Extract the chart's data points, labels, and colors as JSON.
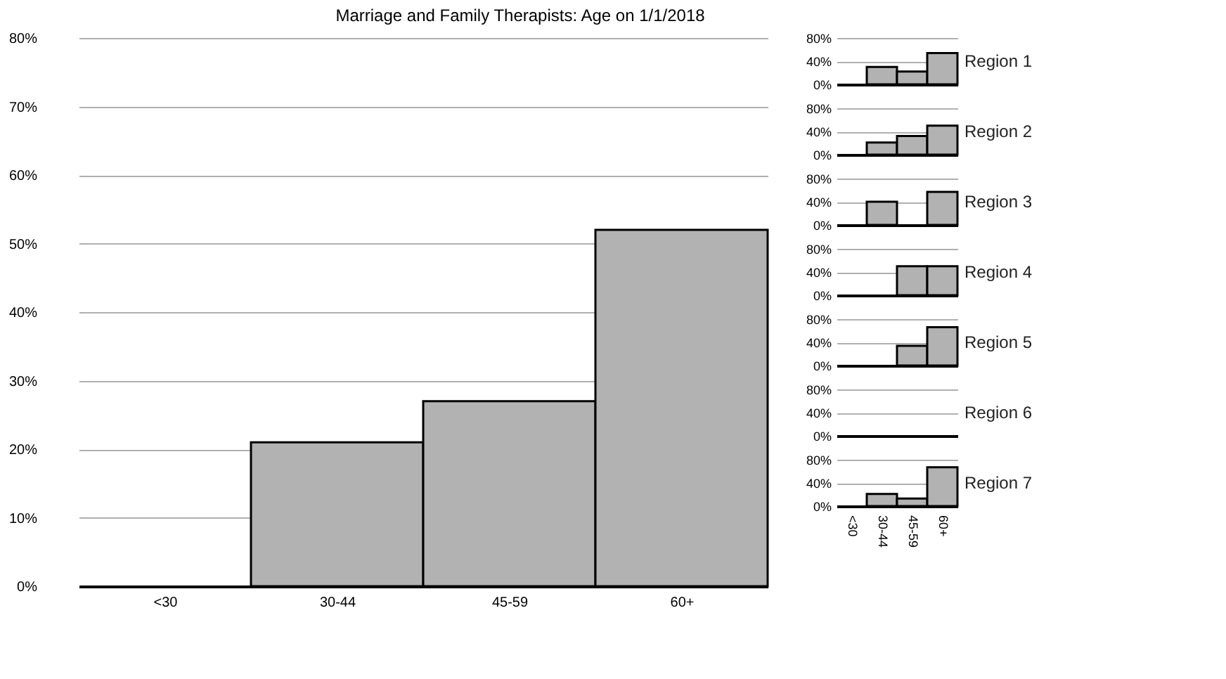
{
  "chart_data": [
    {
      "type": "bar",
      "title": "Marriage and Family Therapists: Age on 1/1/2018",
      "categories": [
        "<30",
        "30-44",
        "45-59",
        "60+"
      ],
      "values": [
        0,
        21,
        27,
        52
      ],
      "color": "#b2b2b2",
      "ylim": [
        0,
        80
      ],
      "yticks": [
        {
          "value": 0,
          "label": "0%"
        },
        {
          "value": 10,
          "label": "10%"
        },
        {
          "value": 20,
          "label": "20%"
        },
        {
          "value": 30,
          "label": "30%"
        },
        {
          "value": 40,
          "label": "40%"
        },
        {
          "value": 50,
          "label": "50%"
        },
        {
          "value": 60,
          "label": "60%"
        },
        {
          "value": 70,
          "label": "70%"
        },
        {
          "value": 80,
          "label": "80%"
        }
      ],
      "grid": "y"
    },
    {
      "type": "bar",
      "annotations": [
        "Region 1"
      ],
      "categories": [
        null,
        null,
        null,
        null
      ],
      "values": [
        0,
        30,
        22,
        54
      ],
      "color": "#b2b2b2",
      "ylim": [
        0,
        80
      ],
      "yticks": [
        {
          "value": 0,
          "label": "0%"
        },
        {
          "value": 40,
          "label": "40%"
        },
        {
          "value": 80,
          "label": "80%"
        }
      ],
      "grid": "y",
      "tick_labels": "y"
    },
    {
      "type": "bar",
      "annotations": [
        "Region 2"
      ],
      "categories": [
        null,
        null,
        null,
        null
      ],
      "values": [
        0,
        21,
        32,
        50
      ],
      "color": "#b2b2b2",
      "ylim": [
        0,
        80
      ],
      "yticks": [
        {
          "value": 0,
          "label": "0%"
        },
        {
          "value": 40,
          "label": "40%"
        },
        {
          "value": 80,
          "label": "80%"
        }
      ],
      "grid": "y",
      "tick_labels": "y"
    },
    {
      "type": "bar",
      "annotations": [
        "Region 3"
      ],
      "categories": [
        null,
        null,
        null,
        null
      ],
      "values": [
        0,
        40,
        0,
        57
      ],
      "color": "#b2b2b2",
      "ylim": [
        0,
        80
      ],
      "yticks": [
        {
          "value": 0,
          "label": "0%"
        },
        {
          "value": 40,
          "label": "40%"
        },
        {
          "value": 80,
          "label": "80%"
        }
      ],
      "grid": "y",
      "tick_labels": "y"
    },
    {
      "type": "bar",
      "annotations": [
        "Region 4"
      ],
      "categories": [
        null,
        null,
        null,
        null
      ],
      "values": [
        0,
        0,
        50,
        50
      ],
      "color": "#b2b2b2",
      "ylim": [
        0,
        80
      ],
      "yticks": [
        {
          "value": 0,
          "label": "0%"
        },
        {
          "value": 40,
          "label": "40%"
        },
        {
          "value": 80,
          "label": "80%"
        }
      ],
      "grid": "y",
      "tick_labels": "y"
    },
    {
      "type": "bar",
      "annotations": [
        "Region 5"
      ],
      "categories": [
        null,
        null,
        null,
        null
      ],
      "values": [
        0,
        0,
        34,
        66
      ],
      "color": "#b2b2b2",
      "ylim": [
        0,
        80
      ],
      "yticks": [
        {
          "value": 0,
          "label": "0%"
        },
        {
          "value": 40,
          "label": "40%"
        },
        {
          "value": 80,
          "label": "80%"
        }
      ],
      "grid": "y",
      "tick_labels": "y"
    },
    {
      "type": "bar",
      "annotations": [
        "Region 6"
      ],
      "categories": [
        null,
        null,
        null,
        null
      ],
      "values": [
        0,
        0,
        0,
        0
      ],
      "color": "#b2b2b2",
      "ylim": [
        0,
        80
      ],
      "yticks": [
        {
          "value": 0,
          "label": "0%"
        },
        {
          "value": 40,
          "label": "40%"
        },
        {
          "value": 80,
          "label": "80%"
        }
      ],
      "grid": "y",
      "tick_labels": "y"
    },
    {
      "type": "bar",
      "annotations": [
        "Region 7"
      ],
      "categories": [
        "<30",
        "30-44",
        "45-59",
        "60+"
      ],
      "values": [
        0,
        21,
        13,
        67
      ],
      "color": "#b2b2b2",
      "ylim": [
        0,
        80
      ],
      "yticks": [
        {
          "value": 0,
          "label": "0%"
        },
        {
          "value": 40,
          "label": "40%"
        },
        {
          "value": 80,
          "label": "80%"
        }
      ],
      "grid": "y"
    }
  ]
}
